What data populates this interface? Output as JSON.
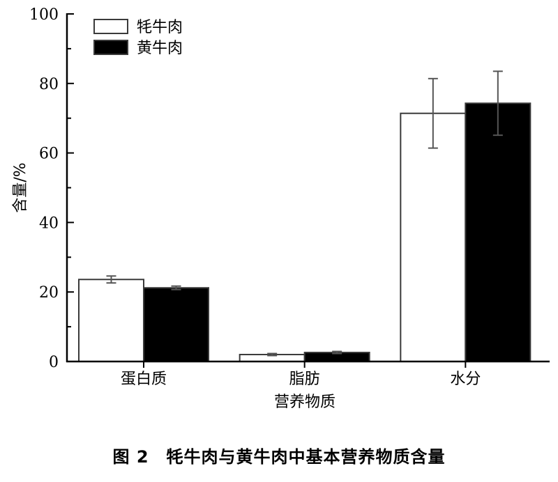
{
  "caption": "图 2　牦牛肉与黄牛肉中基本营养物质含量",
  "chart_data": {
    "type": "bar",
    "title": "",
    "xlabel": "营养物质",
    "ylabel": "含量/%",
    "ylim": [
      0,
      100
    ],
    "yticks": [
      0,
      20,
      40,
      60,
      80,
      100
    ],
    "categories": [
      "蛋白质",
      "脂肪",
      "水分"
    ],
    "legend_position": "top-left",
    "grid": false,
    "series": [
      {
        "name": "牦牛肉",
        "color": "#ffffff",
        "values": [
          23.6,
          2.0,
          71.4
        ],
        "errors": [
          1.0,
          0.3,
          10.0
        ]
      },
      {
        "name": "黄牛肉",
        "color": "#000000",
        "values": [
          21.2,
          2.6,
          74.3
        ],
        "errors": [
          0.5,
          0.3,
          9.2
        ]
      }
    ]
  }
}
